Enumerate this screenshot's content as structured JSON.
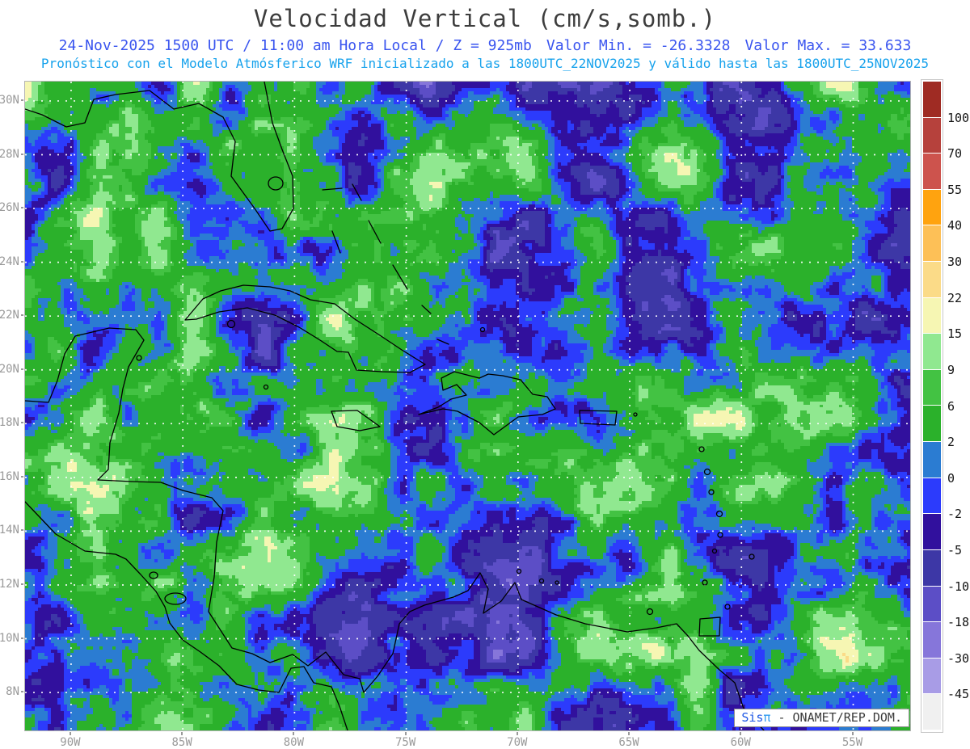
{
  "header": {
    "title": "Velocidad Vertical (cm/s,somb.)",
    "valid_time": "24-Nov-2025  1500 UTC / 11:00 am Hora Local / Z = 925mb",
    "valor_min_text": "Valor Min. = -26.3328",
    "valor_max_text": "Valor Max. = 33.633",
    "model_line": "Pronóstico con el Modelo Atmósferico WRF inicializado a las 1800UTC_22NOV2025 y válido hasta las  1800UTC_25NOV2025"
  },
  "watermark": {
    "brand_prefix": "Sis",
    "brand_symbol": "π",
    "org_text": "- ONAMET/REP.DOM."
  },
  "palette": {
    "title_color": "#3d3d3d",
    "valid_line_color": "#3a55ef",
    "model_line_color": "#17a2ec",
    "axis_label_color": "#9a9a9a",
    "colorbar_label_color": "#141414",
    "grid_color": "#ffffff",
    "coastline_color": "#000000",
    "watermark_brand_color": "#1d57e5",
    "watermark_symbol_color": "#2f9bf0",
    "watermark_text_color": "#3c3c3c"
  },
  "chart_data": {
    "type": "heatmap",
    "title": "Velocidad Vertical (cm/s,somb.)",
    "field_units": "cm/s",
    "pressure_level": "925mb",
    "valor_min": -26.3328,
    "valor_max": 33.633,
    "valid_utc": "24-Nov-2025 1500 UTC",
    "valid_local": "11:00 am Hora Local",
    "model": "WRF",
    "init_time": "1800UTC_22NOV2025",
    "end_time": "1800UTC_25NOV2025",
    "grid": true,
    "x_axis": {
      "values": [
        -90,
        -85,
        -80,
        -75,
        -70,
        -65,
        -60,
        -55
      ],
      "labels": [
        "90W",
        "85W",
        "80W",
        "75W",
        "70W",
        "65W",
        "60W",
        "55W"
      ],
      "lon_range": [
        -92.06,
        -52.45
      ]
    },
    "y_axis": {
      "values": [
        30,
        28,
        26,
        24,
        22,
        20,
        18,
        16,
        14,
        12,
        10,
        8
      ],
      "labels": [
        "30N",
        "28N",
        "26N",
        "24N",
        "22N",
        "20N",
        "18N",
        "16N",
        "14N",
        "12N",
        "10N",
        "8N"
      ],
      "lat_range": [
        6.59,
        30.72
      ]
    },
    "colorbar": {
      "position": "right",
      "levels": [
        -45,
        -30,
        -18,
        -10,
        -5,
        -2,
        0,
        2,
        6,
        9,
        15,
        22,
        30,
        40,
        55,
        70,
        100
      ],
      "labels_top_to_bottom": [
        "100",
        "70",
        "55",
        "40",
        "30",
        "22",
        "15",
        "9",
        "6",
        "2",
        "0",
        "-2",
        "-5",
        "-10",
        "-18",
        "-30",
        "-45"
      ],
      "colors_low_to_high": [
        "#f0f0f0",
        "#a89ce6",
        "#8676da",
        "#5c4ec6",
        "#3d37a6",
        "#31109d",
        "#2c3bfc",
        "#2b7cd2",
        "#2bb12b",
        "#43c243",
        "#90e890",
        "#f6f6b3",
        "#fbdb88",
        "#fdc057",
        "#ffa30f",
        "#cd534d",
        "#b6413c",
        "#9f2b23"
      ]
    },
    "field_note": "filled-contour vertical velocity field over the Caribbean, mostly -5..15 cm/s",
    "noise_seed": 7
  }
}
